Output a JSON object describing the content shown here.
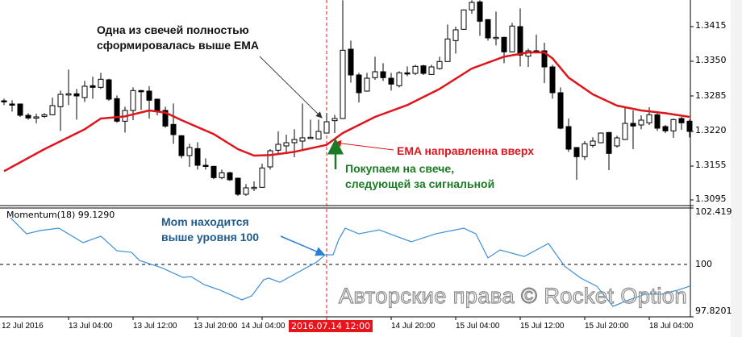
{
  "chart_data": [
    {
      "type": "candlestick",
      "title": "",
      "y_axis": {
        "ticks": [
          "1.3415",
          "1.3350",
          "1.3285",
          "1.3220",
          "1.3155",
          "1.3095"
        ],
        "range": [
          1.3085,
          1.3465
        ]
      },
      "x_axis": {
        "ticks": [
          "12 Jul 2016",
          "13 Jul 04:00",
          "13 Jul 12:00",
          "13 Jul 20:00",
          "14 Jul 04:00",
          "14 Jul 20:00",
          "15 Jul 04:00",
          "15 Jul 12:00",
          "15 Jul 20:00",
          "18 Jul 04:00"
        ]
      },
      "cursor_time_label": "2016.07.14 12:00",
      "colors": {
        "bull_body": "#ffffff",
        "bear_body": "#000000",
        "ema": "#e0141c",
        "cursor": "#e0141c"
      },
      "candles_ohlc": [
        [
          1.3277,
          1.3281,
          1.3269,
          1.3276
        ],
        [
          1.3271,
          1.3278,
          1.3257,
          1.327
        ],
        [
          1.3271,
          1.3272,
          1.3247,
          1.325
        ],
        [
          1.325,
          1.3254,
          1.3242,
          1.3245
        ],
        [
          1.3246,
          1.3253,
          1.3235,
          1.3247
        ],
        [
          1.3248,
          1.3254,
          1.3245,
          1.3251
        ],
        [
          1.3251,
          1.3283,
          1.325,
          1.3268
        ],
        [
          1.3266,
          1.3296,
          1.3221,
          1.3289
        ],
        [
          1.3289,
          1.3335,
          1.3269,
          1.329
        ],
        [
          1.329,
          1.3299,
          1.3242,
          1.3286
        ],
        [
          1.3283,
          1.3314,
          1.3275,
          1.3304
        ],
        [
          1.3305,
          1.3322,
          1.3281,
          1.3302
        ],
        [
          1.3302,
          1.3329,
          1.3299,
          1.3317
        ],
        [
          1.3316,
          1.3318,
          1.3277,
          1.328
        ],
        [
          1.3281,
          1.3287,
          1.3236,
          1.3239
        ],
        [
          1.3239,
          1.3266,
          1.3218,
          1.3259
        ],
        [
          1.3259,
          1.3302,
          1.3241,
          1.3296
        ],
        [
          1.3296,
          1.3297,
          1.326,
          1.3295
        ],
        [
          1.3295,
          1.3304,
          1.3244,
          1.3278
        ],
        [
          1.328,
          1.3281,
          1.325,
          1.3259
        ],
        [
          1.3259,
          1.3266,
          1.3227,
          1.323
        ],
        [
          1.3233,
          1.3272,
          1.3197,
          1.3214
        ],
        [
          1.3212,
          1.3213,
          1.317,
          1.3175
        ],
        [
          1.3175,
          1.3197,
          1.3154,
          1.319
        ],
        [
          1.3188,
          1.32,
          1.3149,
          1.3157
        ],
        [
          1.3157,
          1.317,
          1.3149,
          1.3156
        ],
        [
          1.3155,
          1.3156,
          1.3131,
          1.3134
        ],
        [
          1.3134,
          1.3149,
          1.3131,
          1.3143
        ],
        [
          1.3143,
          1.3145,
          1.3128,
          1.313
        ],
        [
          1.3133,
          1.3134,
          1.31,
          1.3103
        ],
        [
          1.3103,
          1.3122,
          1.31,
          1.3115
        ],
        [
          1.3115,
          1.3127,
          1.3109,
          1.3116
        ],
        [
          1.3116,
          1.316,
          1.3115,
          1.3152
        ],
        [
          1.3154,
          1.3187,
          1.3149,
          1.3184
        ],
        [
          1.3185,
          1.322,
          1.3179,
          1.3196
        ],
        [
          1.3193,
          1.3214,
          1.3178,
          1.3199
        ],
        [
          1.3199,
          1.3224,
          1.3172,
          1.3205
        ],
        [
          1.3202,
          1.3272,
          1.3187,
          1.3208
        ],
        [
          1.3208,
          1.3242,
          1.3206,
          1.3209
        ],
        [
          1.3206,
          1.3242,
          1.3205,
          1.322
        ],
        [
          1.3217,
          1.3254,
          1.3216,
          1.3238
        ],
        [
          1.324,
          1.3251,
          1.3217,
          1.3244
        ],
        [
          1.3244,
          1.3464,
          1.3243,
          1.3371
        ],
        [
          1.3373,
          1.3389,
          1.3311,
          1.3325
        ],
        [
          1.3325,
          1.3329,
          1.3274,
          1.3292
        ],
        [
          1.3295,
          1.3329,
          1.3294,
          1.3319
        ],
        [
          1.332,
          1.3359,
          1.3316,
          1.3331
        ],
        [
          1.3331,
          1.3347,
          1.3314,
          1.332
        ],
        [
          1.3319,
          1.3329,
          1.3296,
          1.3308
        ],
        [
          1.3305,
          1.3332,
          1.3302,
          1.3329
        ],
        [
          1.3329,
          1.3341,
          1.3323,
          1.3328
        ],
        [
          1.3328,
          1.3344,
          1.3325,
          1.3341
        ],
        [
          1.3342,
          1.3344,
          1.3325,
          1.3328
        ],
        [
          1.3326,
          1.3344,
          1.3325,
          1.334
        ],
        [
          1.3337,
          1.3359,
          1.3335,
          1.335
        ],
        [
          1.335,
          1.3419,
          1.3349,
          1.3392
        ],
        [
          1.3389,
          1.3415,
          1.3365,
          1.3409
        ],
        [
          1.341,
          1.3447,
          1.3409,
          1.3446
        ],
        [
          1.3446,
          1.3464,
          1.3439,
          1.346
        ],
        [
          1.3461,
          1.3464,
          1.3398,
          1.3425
        ],
        [
          1.3428,
          1.3429,
          1.3389,
          1.3394
        ],
        [
          1.3394,
          1.3443,
          1.338,
          1.3395
        ],
        [
          1.3395,
          1.3396,
          1.3347,
          1.3368
        ],
        [
          1.3368,
          1.3422,
          1.3367,
          1.3416
        ],
        [
          1.3415,
          1.3449,
          1.3341,
          1.3362
        ],
        [
          1.336,
          1.3374,
          1.334,
          1.337
        ],
        [
          1.337,
          1.34,
          1.3367,
          1.3369
        ],
        [
          1.337,
          1.3385,
          1.331,
          1.334
        ],
        [
          1.334,
          1.3344,
          1.3281,
          1.3292
        ],
        [
          1.3292,
          1.3302,
          1.3224,
          1.3226
        ],
        [
          1.3229,
          1.3244,
          1.3182,
          1.3187
        ],
        [
          1.319,
          1.3191,
          1.313,
          1.3173
        ],
        [
          1.3173,
          1.3202,
          1.3167,
          1.3197
        ],
        [
          1.3194,
          1.3209,
          1.319,
          1.3202
        ],
        [
          1.3199,
          1.3218,
          1.3198,
          1.3217
        ],
        [
          1.3218,
          1.3219,
          1.3148,
          1.3179
        ],
        [
          1.3193,
          1.3212,
          1.319,
          1.3208
        ],
        [
          1.3205,
          1.3265,
          1.3204,
          1.3235
        ],
        [
          1.3235,
          1.3259,
          1.3187,
          1.323
        ],
        [
          1.3232,
          1.325,
          1.3224,
          1.3241
        ],
        [
          1.3236,
          1.3265,
          1.3232,
          1.3251
        ],
        [
          1.3251,
          1.3254,
          1.3221,
          1.3226
        ],
        [
          1.3229,
          1.3232,
          1.3217,
          1.3221
        ],
        [
          1.3221,
          1.3244,
          1.3208,
          1.3242
        ],
        [
          1.3244,
          1.3247,
          1.3223,
          1.3236
        ],
        [
          1.3239,
          1.3242,
          1.3209,
          1.322
        ]
      ],
      "ema_points": [
        [
          0,
          1.3146
        ],
        [
          5,
          1.3187
        ],
        [
          10,
          1.3224
        ],
        [
          12,
          1.3244
        ],
        [
          15,
          1.3248
        ],
        [
          18,
          1.3259
        ],
        [
          20,
          1.3255
        ],
        [
          22,
          1.3241
        ],
        [
          26,
          1.3215
        ],
        [
          29,
          1.3187
        ],
        [
          31,
          1.3175
        ],
        [
          33,
          1.3176
        ],
        [
          36,
          1.3182
        ],
        [
          40,
          1.3195
        ],
        [
          42,
          1.3217
        ],
        [
          46,
          1.3247
        ],
        [
          50,
          1.3269
        ],
        [
          54,
          1.3299
        ],
        [
          58,
          1.3337
        ],
        [
          62,
          1.3359
        ],
        [
          65,
          1.3367
        ],
        [
          67,
          1.3367
        ],
        [
          68,
          1.3356
        ],
        [
          70,
          1.332
        ],
        [
          73,
          1.3289
        ],
        [
          76,
          1.3268
        ],
        [
          79,
          1.3259
        ],
        [
          82,
          1.3254
        ],
        [
          85,
          1.3247
        ]
      ],
      "cursor_candle_index": 40
    },
    {
      "type": "line",
      "title": "Momentum(18) 99.1290",
      "y_axis": {
        "ticks": [
          "102.419",
          "100",
          "97.8201"
        ],
        "range": [
          97.8201,
          102.419
        ]
      },
      "level": 100,
      "colors": {
        "line": "#3b8fd6",
        "level": "#000000"
      },
      "points": [
        [
          0.8,
          102.23
        ],
        [
          2.8,
          101.46
        ],
        [
          4.5,
          101.62
        ],
        [
          6.8,
          101.73
        ],
        [
          9.8,
          101.04
        ],
        [
          12,
          101.35
        ],
        [
          14,
          100.65
        ],
        [
          15.8,
          100.58
        ],
        [
          16.8,
          100.19
        ],
        [
          19.5,
          99.85
        ],
        [
          22.2,
          99.38
        ],
        [
          23.2,
          99.42
        ],
        [
          24.8,
          99.04
        ],
        [
          26.8,
          98.77
        ],
        [
          29.5,
          98.31
        ],
        [
          30.7,
          98.5
        ],
        [
          32.2,
          99.27
        ],
        [
          32.8,
          99.35
        ],
        [
          34.2,
          99.15
        ],
        [
          38.8,
          100.12
        ],
        [
          39.8,
          100.46
        ],
        [
          40.8,
          100.46
        ],
        [
          41.5,
          101.19
        ],
        [
          42.3,
          101.73
        ],
        [
          44,
          101.46
        ],
        [
          46.5,
          101.65
        ],
        [
          50.5,
          101.08
        ],
        [
          53.5,
          101.46
        ],
        [
          57,
          101.73
        ],
        [
          58.5,
          101.46
        ],
        [
          60,
          100.31
        ],
        [
          61.5,
          100.69
        ],
        [
          64.5,
          100.38
        ],
        [
          67.5,
          101.0
        ],
        [
          69.5,
          99.92
        ],
        [
          71.5,
          99.35
        ],
        [
          73.5,
          98.96
        ],
        [
          75.5,
          98.0
        ],
        [
          77.5,
          98.31
        ],
        [
          79.5,
          98.58
        ],
        [
          81.5,
          98.58
        ],
        [
          83.5,
          98.77
        ],
        [
          85,
          98.96
        ]
      ]
    }
  ],
  "annotations": {
    "candle_note": [
      "Одна из свечей полностью",
      "сформировалась выше EMA"
    ],
    "ema_note": "EMA направленна вверх",
    "buy_note": [
      "Покупаем на свече,",
      "следующей за сигнальной"
    ],
    "mom_note": [
      "Mom находится",
      "выше уровня 100"
    ]
  },
  "watermark": "Авторские права © Rocket Option"
}
